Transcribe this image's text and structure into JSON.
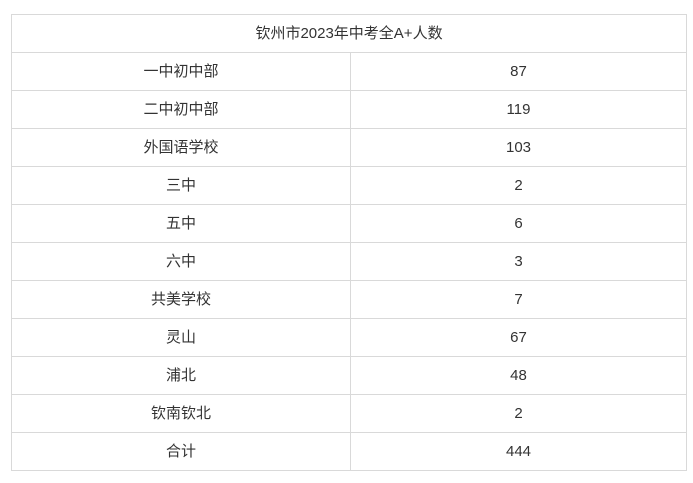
{
  "page": {
    "background_color": "#ffffff",
    "border_color": "#d9d9d9",
    "text_color": "#333333"
  },
  "table": {
    "title": "钦州市2023年中考全A+人数",
    "rows": [
      {
        "school": "一中初中部",
        "count": "87"
      },
      {
        "school": "二中初中部",
        "count": "119"
      },
      {
        "school": "外国语学校",
        "count": "103"
      },
      {
        "school": "三中",
        "count": "2"
      },
      {
        "school": "五中",
        "count": "6"
      },
      {
        "school": "六中",
        "count": "3"
      },
      {
        "school": "共美学校",
        "count": "7"
      },
      {
        "school": "灵山",
        "count": "67"
      },
      {
        "school": "浦北",
        "count": "48"
      },
      {
        "school": "钦南钦北",
        "count": "2"
      },
      {
        "school": "合计",
        "count": "444"
      }
    ]
  },
  "chart_data": {
    "type": "table",
    "title": "钦州市2023年中考全A+人数",
    "categories": [
      "一中初中部",
      "二中初中部",
      "外国语学校",
      "三中",
      "五中",
      "六中",
      "共美学校",
      "灵山",
      "浦北",
      "钦南钦北",
      "合计"
    ],
    "values": [
      87,
      119,
      103,
      2,
      6,
      3,
      7,
      67,
      48,
      2,
      444
    ]
  }
}
